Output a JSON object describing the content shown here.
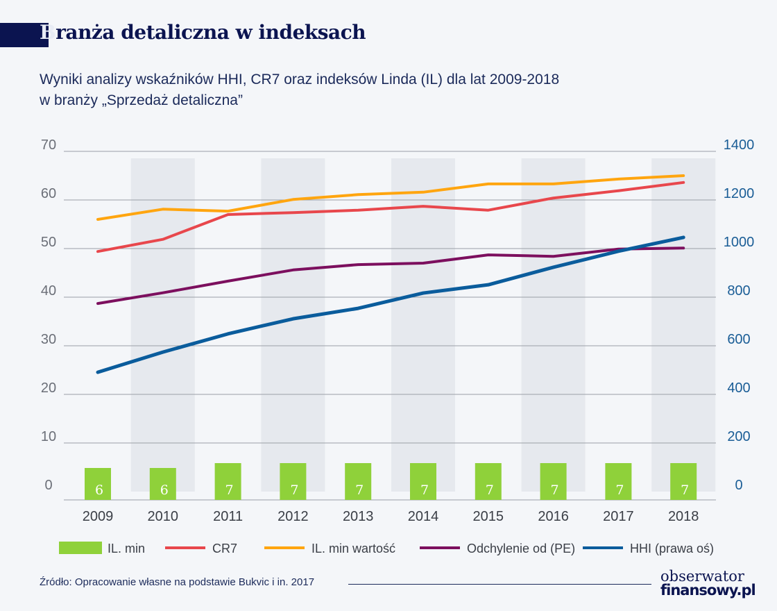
{
  "title_first": "B",
  "title_rest": "ranża detaliczna w indeksach",
  "subtitle_line1": "Wyniki analizy wskaźników HHI, CR7 oraz indeksów Linda (IL) dla lat 2009-2018",
  "subtitle_line2": "w branży „Sprzedaż detaliczna”",
  "source": "Źródło: Opracowanie własne na podstawie Bukvic i in. 2017",
  "logo": {
    "line1": "obserwator",
    "line2": "finansowy.pl"
  },
  "chart_data": {
    "type": "bar+line",
    "categories": [
      "2009",
      "2010",
      "2011",
      "2012",
      "2013",
      "2014",
      "2015",
      "2016",
      "2017",
      "2018"
    ],
    "left_axis": {
      "range": [
        0,
        70
      ],
      "ticks": [
        0,
        10,
        20,
        30,
        40,
        50,
        60,
        70
      ]
    },
    "right_axis": {
      "range": [
        0,
        1400
      ],
      "ticks": [
        0,
        200,
        400,
        600,
        800,
        1000,
        1200,
        1400
      ]
    },
    "grid": true,
    "legend_placement": "bottom",
    "series": [
      {
        "name": "IL. min",
        "kind": "bar",
        "axis": "left",
        "color": "#8fd13a",
        "values": [
          6,
          6,
          7,
          7,
          7,
          7,
          7,
          7,
          7,
          7
        ],
        "labels": [
          "6",
          "6",
          "7",
          "7",
          "7",
          "7",
          "7",
          "7",
          "7",
          "7"
        ]
      },
      {
        "name": "CR7",
        "kind": "line",
        "axis": "left",
        "color": "#e8474c",
        "values": [
          49.4,
          51.9,
          57.0,
          57.4,
          57.9,
          58.7,
          57.9,
          60.4,
          61.9,
          63.6
        ]
      },
      {
        "name": "IL. min wartość",
        "kind": "line",
        "axis": "left",
        "color": "#ffa50f",
        "values": [
          56.0,
          58.1,
          57.7,
          60.1,
          61.1,
          61.6,
          63.3,
          63.3,
          64.3,
          65.0
        ]
      },
      {
        "name": "Odchylenie od (PE)",
        "kind": "line",
        "axis": "left",
        "color": "#7c0f5e",
        "values": [
          38.7,
          40.9,
          43.3,
          45.6,
          46.7,
          47.0,
          48.7,
          48.4,
          49.9,
          50.1
        ]
      },
      {
        "name": "HHI (prawa oś)",
        "kind": "line",
        "axis": "right",
        "color": "#0a5c9c",
        "values": [
          491,
          574,
          649,
          711,
          754,
          817,
          851,
          923,
          989,
          1046
        ]
      }
    ]
  }
}
